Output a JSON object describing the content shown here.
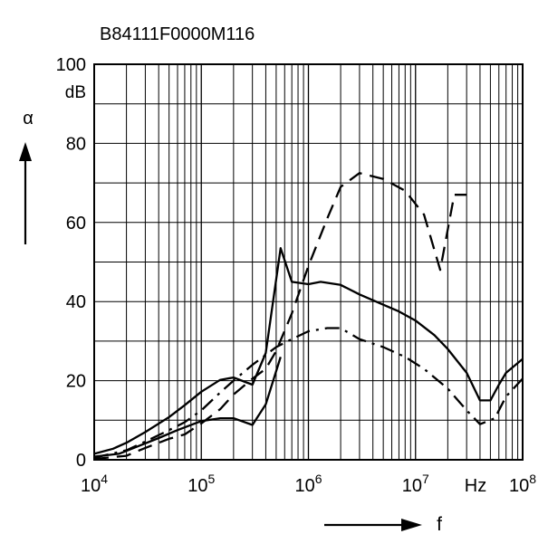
{
  "chart_data": {
    "type": "line",
    "title": "B84111F0000M116",
    "xlabel": "f",
    "x_unit": "Hz",
    "ylabel": "α",
    "y_unit": "dB",
    "x_scale": "log",
    "xlim": [
      10000,
      100000000
    ],
    "ylim": [
      0,
      100
    ],
    "y_ticks": [
      0,
      20,
      40,
      60,
      80,
      100
    ],
    "x_tick_labels": [
      {
        "base": "10",
        "exp": "4"
      },
      {
        "base": "10",
        "exp": "5"
      },
      {
        "base": "10",
        "exp": "6"
      },
      {
        "base": "10",
        "exp": "7"
      },
      {
        "base": "10",
        "exp": "8"
      }
    ],
    "grid": true,
    "series": [
      {
        "style": "solid",
        "points": [
          [
            10000,
            1.5
          ],
          [
            15000,
            2.8
          ],
          [
            20000,
            4.3
          ],
          [
            30000,
            7
          ],
          [
            50000,
            10.8
          ],
          [
            70000,
            13.8
          ],
          [
            100000,
            17.2
          ],
          [
            150000,
            20.2
          ],
          [
            200000,
            20.8
          ],
          [
            250000,
            19.8
          ],
          [
            300000,
            19
          ],
          [
            400000,
            27
          ],
          [
            550000,
            53.5
          ],
          [
            700000,
            45
          ],
          [
            1000000,
            44.4
          ],
          [
            1300000,
            45
          ],
          [
            2000000,
            44.2
          ],
          [
            3000000,
            41.8
          ],
          [
            5000000,
            39.2
          ],
          [
            7000000,
            37.5
          ],
          [
            10000000,
            35.2
          ],
          [
            15000000,
            31.5
          ],
          [
            20000000,
            28
          ],
          [
            30000000,
            22
          ],
          [
            40000000,
            15
          ],
          [
            50000000,
            15
          ],
          [
            60000000,
            19
          ],
          [
            70000000,
            22
          ],
          [
            100000000,
            25.5
          ]
        ]
      },
      {
        "style": "dashed",
        "points": [
          [
            10000,
            0.2
          ],
          [
            20000,
            1
          ],
          [
            30000,
            3
          ],
          [
            50000,
            5.3
          ],
          [
            70000,
            6.4
          ],
          [
            100000,
            9.2
          ],
          [
            150000,
            12.8
          ],
          [
            200000,
            16.5
          ],
          [
            300000,
            20.5
          ],
          [
            400000,
            23
          ],
          [
            500000,
            27.5
          ],
          [
            700000,
            37
          ],
          [
            1000000,
            49
          ],
          [
            1500000,
            61
          ],
          [
            2000000,
            69
          ],
          [
            3000000,
            72.5
          ],
          [
            5000000,
            71
          ],
          [
            8000000,
            68
          ],
          [
            12000000,
            62
          ],
          [
            17000000,
            48
          ],
          [
            23000000,
            67
          ],
          [
            30000000,
            67
          ]
        ]
      },
      {
        "style": "dash-dot",
        "points": [
          [
            10000,
            0.5
          ],
          [
            20000,
            2.4
          ],
          [
            30000,
            4.6
          ],
          [
            50000,
            7.5
          ],
          [
            70000,
            9.5
          ],
          [
            100000,
            12.5
          ],
          [
            150000,
            17
          ],
          [
            200000,
            20
          ],
          [
            300000,
            24
          ],
          [
            500000,
            28.5
          ],
          [
            700000,
            30.5
          ],
          [
            1000000,
            32.5
          ],
          [
            1500000,
            33.3
          ],
          [
            2000000,
            33.3
          ],
          [
            3000000,
            30.5
          ],
          [
            5000000,
            28.5
          ],
          [
            8000000,
            26
          ],
          [
            12000000,
            23
          ],
          [
            20000000,
            18
          ],
          [
            30000000,
            12.5
          ],
          [
            40000000,
            9
          ],
          [
            55000000,
            10.5
          ],
          [
            70000000,
            16
          ],
          [
            100000000,
            20.5
          ]
        ]
      },
      {
        "style": "solid",
        "points": [
          [
            10000,
            0.8
          ],
          [
            17000,
            1.5
          ],
          [
            25000,
            3.3
          ],
          [
            40000,
            5.5
          ],
          [
            60000,
            7.5
          ],
          [
            100000,
            9.8
          ],
          [
            150000,
            10.5
          ],
          [
            200000,
            10.5
          ],
          [
            300000,
            8.8
          ],
          [
            400000,
            14
          ],
          [
            550000,
            26
          ]
        ]
      }
    ]
  }
}
